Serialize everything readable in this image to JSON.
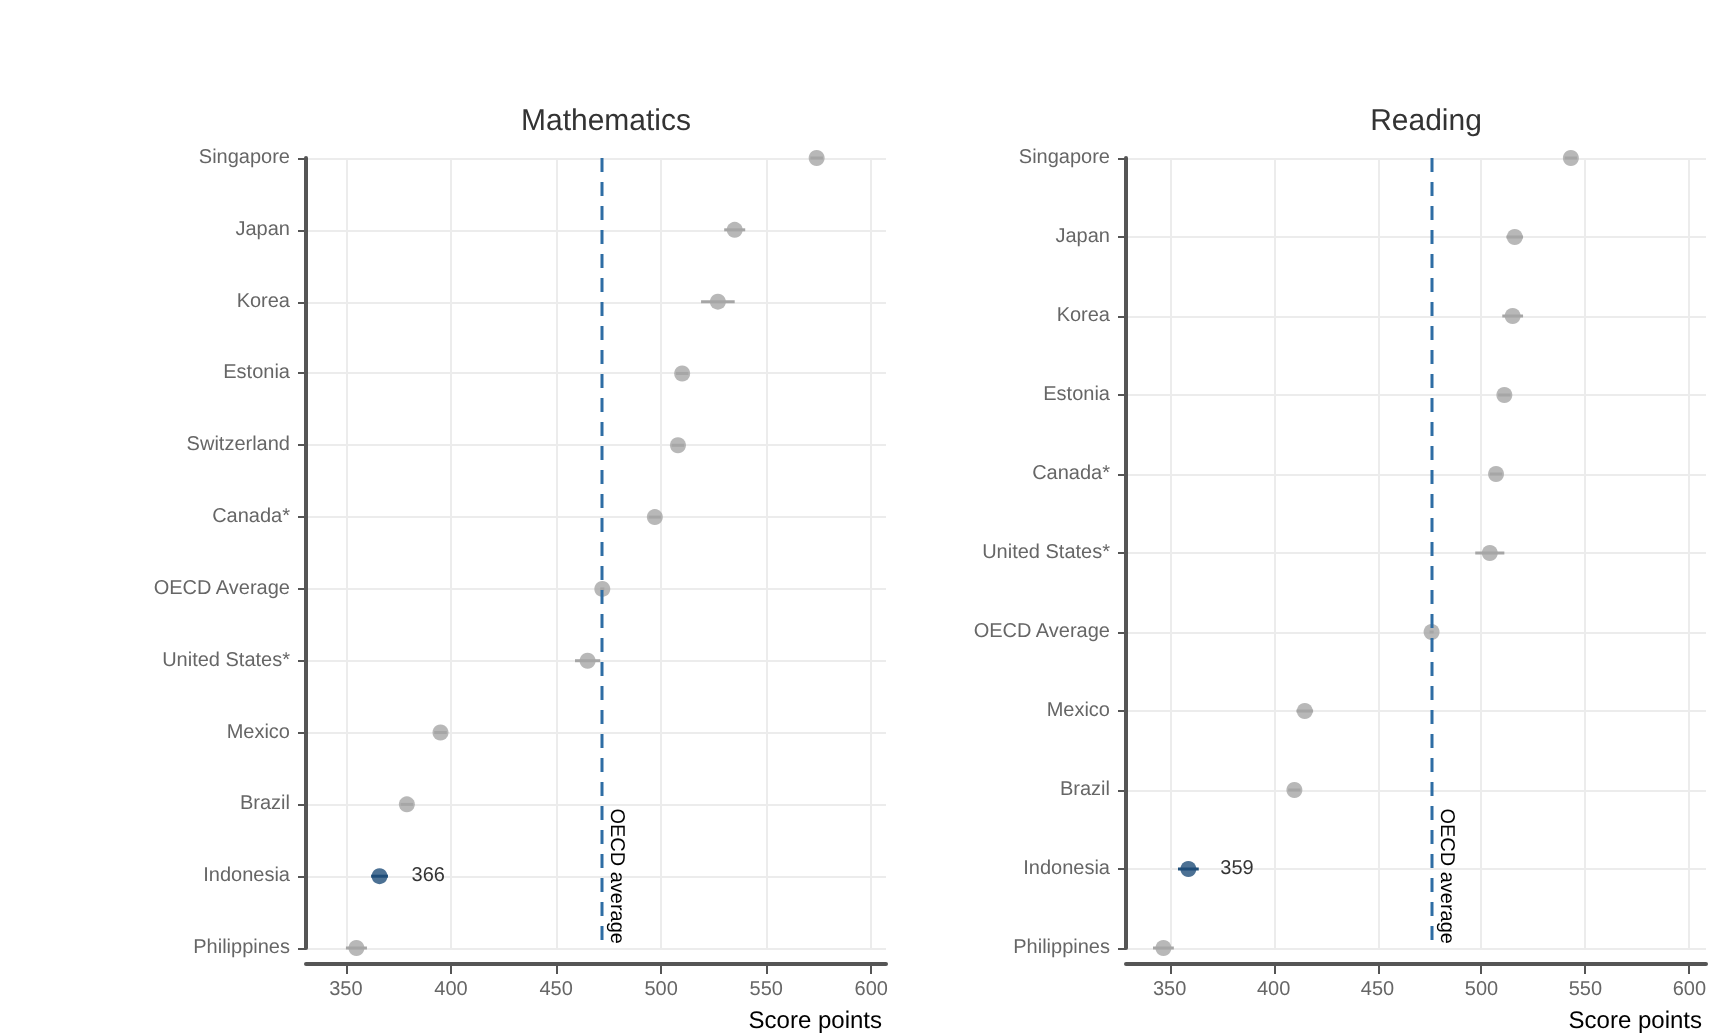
{
  "chart_data": [
    {
      "type": "scatter",
      "orientation": "horizontal",
      "title": "Mathematics",
      "xlabel": "Score points",
      "categories": [
        "Singapore",
        "Japan",
        "Korea",
        "Estonia",
        "Switzerland",
        "Canada*",
        "OECD Average",
        "United States*",
        "Mexico",
        "Brazil",
        "Indonesia",
        "Philippines"
      ],
      "values": [
        574,
        535,
        527,
        510,
        508,
        497,
        472,
        465,
        395,
        379,
        366,
        355
      ],
      "colors": [
        "#a6a6a6",
        "#a6a6a6",
        "#a6a6a6",
        "#a6a6a6",
        "#a6a6a6",
        "#a6a6a6",
        "#a6a6a6",
        "#a6a6a6",
        "#a6a6a6",
        "#a6a6a6",
        "#1f4e79",
        "#a6a6a6"
      ],
      "errors": [
        3,
        5,
        8,
        3,
        3,
        3,
        1,
        6,
        3,
        3,
        4,
        5
      ],
      "value_labels": [
        null,
        null,
        null,
        null,
        null,
        null,
        null,
        null,
        null,
        null,
        "366",
        null
      ],
      "xlim": [
        331,
        607
      ],
      "xticks": [
        350,
        400,
        450,
        500,
        550,
        600
      ],
      "grid": true,
      "marker": "circle",
      "ref_lines": [
        {
          "axis": "x",
          "value": 472,
          "label": "OECD average",
          "color": "#2e6da4",
          "line_style": "dashed"
        }
      ]
    },
    {
      "type": "scatter",
      "orientation": "horizontal",
      "title": "Reading",
      "xlabel": "Score points",
      "categories": [
        "Singapore",
        "Japan",
        "Korea",
        "Estonia",
        "Canada*",
        "United States*",
        "OECD Average",
        "Mexico",
        "Brazil",
        "Indonesia",
        "Philippines"
      ],
      "values": [
        543,
        516,
        515,
        511,
        507,
        504,
        476,
        415,
        410,
        359,
        347
      ],
      "colors": [
        "#a6a6a6",
        "#a6a6a6",
        "#a6a6a6",
        "#a6a6a6",
        "#a6a6a6",
        "#a6a6a6",
        "#a6a6a6",
        "#a6a6a6",
        "#a6a6a6",
        "#1f4e79",
        "#a6a6a6"
      ],
      "errors": [
        3,
        4,
        5,
        3,
        3,
        7,
        1,
        4,
        3,
        5,
        5
      ],
      "value_labels": [
        null,
        null,
        null,
        null,
        null,
        null,
        null,
        null,
        null,
        "359",
        null
      ],
      "xlim": [
        329,
        608
      ],
      "xticks": [
        350,
        400,
        450,
        500,
        550,
        600
      ],
      "grid": true,
      "marker": "circle",
      "ref_lines": [
        {
          "axis": "x",
          "value": 476,
          "label": "OECD average",
          "color": "#2e6da4",
          "line_style": "dashed"
        }
      ]
    }
  ]
}
